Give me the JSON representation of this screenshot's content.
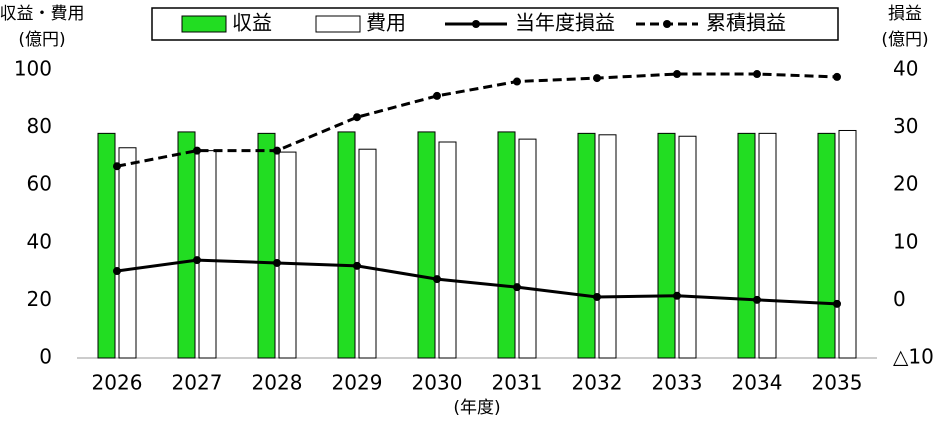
{
  "chart_data": {
    "type": "bar_line",
    "ylabel_lines": [
      "収益・費用",
      "(億円)"
    ],
    "y2label_lines": [
      "損益",
      "(億円)"
    ],
    "xlabel": "(年度)",
    "categories": [
      "2026",
      "2027",
      "2028",
      "2029",
      "2030",
      "2031",
      "2032",
      "2033",
      "2034",
      "2035"
    ],
    "series": [
      {
        "name": "収益",
        "kind": "bar",
        "color": "#22dd22",
        "values": [
          78,
          78.5,
          78,
          78.5,
          78.5,
          78.5,
          78,
          78,
          78,
          78
        ]
      },
      {
        "name": "費用",
        "kind": "bar",
        "color": "#ffffff",
        "values": [
          73,
          72,
          71.5,
          72.5,
          75,
          76,
          77.5,
          77,
          78,
          79
        ]
      },
      {
        "name": "当年度損益",
        "kind": "line",
        "color": "#000000",
        "axis": "y2",
        "values": [
          5.1,
          7,
          6.5,
          6,
          3.7,
          2.3,
          0.6,
          0.8,
          0.1,
          -0.6
        ]
      },
      {
        "name": "累積損益",
        "kind": "dashed-line",
        "color": "#000000",
        "axis": "y2",
        "values": [
          23.3,
          26,
          26,
          31.8,
          35.5,
          38,
          38.6,
          39.3,
          39.3,
          38.8
        ]
      }
    ],
    "ylim": [
      0,
      100
    ],
    "yticks": [
      0,
      20,
      40,
      60,
      80,
      100
    ],
    "y2lim": [
      -10,
      40
    ],
    "y2ticks": [
      {
        "value": -10,
        "label": "△10"
      },
      0,
      10,
      20,
      30,
      40
    ],
    "grid": false
  }
}
